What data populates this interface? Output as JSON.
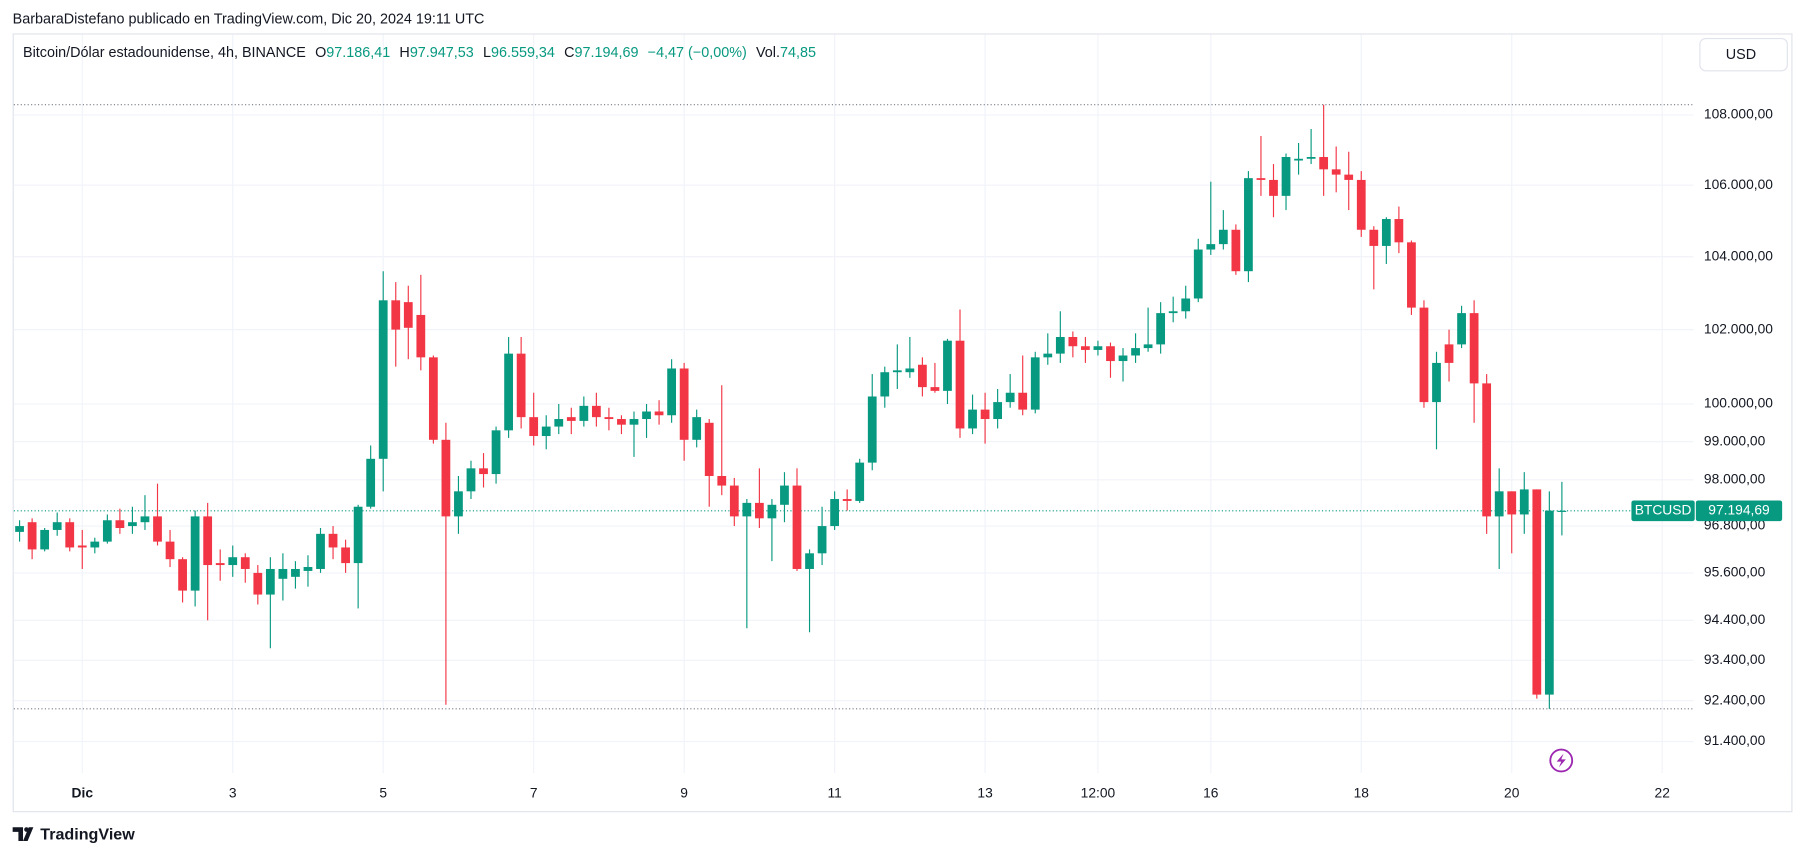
{
  "header": {
    "attribution": "BarbaraDistefano publicado en TradingView.com, Dic 20, 2024 19:11 UTC",
    "logo": "TradingView",
    "currency": "USD"
  },
  "legend": {
    "symbol": "Bitcoin/Dólar estadounidense, 4h, BINANCE",
    "open_label": "O",
    "open": "97.186,41",
    "high_label": "H",
    "high": "97.947,53",
    "low_label": "L",
    "low": "96.559,34",
    "close_label": "C",
    "close": "97.194,69",
    "change": "−4,47 (−0,00%)",
    "volume_label": "Vol.",
    "volume": "74,85"
  },
  "chart_data": {
    "type": "candlestick",
    "log_scale": true,
    "grid": true,
    "up_color": "#089981",
    "down_color": "#f23645",
    "symbol": "BTCUSD",
    "last_price_label": "97.194,69",
    "xlim": [
      -0.46,
      133.5
    ],
    "xticks": [
      {
        "value": 5,
        "label": "Dic"
      },
      {
        "value": 17,
        "label": "3"
      },
      {
        "value": 29,
        "label": "5"
      },
      {
        "value": 41,
        "label": "7"
      },
      {
        "value": 53,
        "label": "9"
      },
      {
        "value": 65,
        "label": "11"
      },
      {
        "value": 77,
        "label": "13"
      },
      {
        "value": 86,
        "label": "12:00"
      },
      {
        "value": 95,
        "label": "16"
      },
      {
        "value": 107,
        "label": "18"
      },
      {
        "value": 119,
        "label": "20"
      },
      {
        "value": 131,
        "label": "22"
      }
    ],
    "ylim": [
      90634,
      110342
    ],
    "yticks": [
      {
        "value": 108000,
        "label": "108.000,00"
      },
      {
        "value": 106000,
        "label": "106.000,00"
      },
      {
        "value": 104000,
        "label": "104.000,00"
      },
      {
        "value": 102000,
        "label": "102.000,00"
      },
      {
        "value": 100000,
        "label": "100.000,00"
      },
      {
        "value": 99000,
        "label": "99.000,00"
      },
      {
        "value": 98000,
        "label": "98.000,00"
      },
      {
        "value": 96800,
        "label": "96.800,00"
      },
      {
        "value": 95600,
        "label": "95.600,00"
      },
      {
        "value": 94400,
        "label": "94.400,00"
      },
      {
        "value": 93400,
        "label": "93.400,00"
      },
      {
        "value": 92400,
        "label": "92.400,00"
      },
      {
        "value": 91400,
        "label": "91.400,00"
      }
    ],
    "open": [
      96650,
      96900,
      96200,
      96700,
      96900,
      96300,
      96250,
      96400,
      96950,
      96800,
      96900,
      97050,
      96400,
      95950,
      95150,
      97050,
      95850,
      95800,
      96000,
      95600,
      95050,
      95450,
      95500,
      95650,
      95700,
      96600,
      96250,
      95850,
      97300,
      98550,
      102800,
      102750,
      102400,
      101250,
      99050,
      97050,
      97700,
      98300,
      98150,
      99300,
      101350,
      99650,
      99150,
      99400,
      99650,
      99550,
      99950,
      99650,
      99600,
      99450,
      99600,
      99800,
      99700,
      100950,
      99050,
      99500,
      98100,
      97850,
      97050,
      97400,
      97000,
      97350,
      97850,
      95700,
      96100,
      96800,
      97500,
      97450,
      98450,
      100200,
      100850,
      100850,
      101050,
      100450,
      100350,
      101700,
      99350,
      99850,
      99600,
      100050,
      100300,
      99850,
      101250,
      101350,
      101800,
      101550,
      101450,
      101550,
      101150,
      101300,
      101500,
      101600,
      102450,
      102500,
      102850,
      104200,
      104350,
      104750,
      103600,
      106200,
      106150,
      105700,
      106700,
      106750,
      106800,
      106450,
      106300,
      106150,
      104750,
      104300,
      105050,
      104400,
      102600,
      100050,
      101600,
      101600,
      102450,
      100550,
      97050,
      97700,
      97100,
      97750,
      92550,
      97186.41
    ],
    "high": [
      96950,
      97000,
      96750,
      97150,
      97000,
      96700,
      96500,
      97100,
      97250,
      97300,
      97600,
      97900,
      96700,
      96000,
      97200,
      97400,
      96200,
      96300,
      96100,
      95800,
      96000,
      96100,
      95900,
      96050,
      96750,
      96800,
      96450,
      97350,
      98900,
      103600,
      103300,
      103200,
      103500,
      101300,
      99500,
      98100,
      98500,
      98700,
      99400,
      101800,
      101800,
      100300,
      99700,
      100000,
      99900,
      100200,
      100300,
      99900,
      99700,
      99800,
      100000,
      100100,
      101200,
      101100,
      99850,
      99600,
      100500,
      98050,
      97500,
      98300,
      97500,
      98200,
      98300,
      96200,
      97300,
      97700,
      97750,
      98550,
      100800,
      101000,
      101600,
      101800,
      101250,
      101100,
      101750,
      102550,
      100250,
      100300,
      100400,
      100800,
      101300,
      101400,
      101900,
      102500,
      101950,
      101800,
      101700,
      101650,
      101500,
      101900,
      102600,
      102750,
      102900,
      103200,
      104500,
      106100,
      105300,
      104900,
      106400,
      107400,
      106600,
      106900,
      107200,
      107600,
      108300,
      107100,
      106950,
      106400,
      104850,
      105100,
      105400,
      104450,
      102800,
      101400,
      102000,
      102650,
      102800,
      100800,
      98300,
      97700,
      98200,
      97750,
      97700,
      97947.53
    ],
    "low": [
      96400,
      95950,
      96150,
      96550,
      96150,
      95700,
      96100,
      96350,
      96600,
      96600,
      96700,
      96300,
      95750,
      94850,
      94750,
      94400,
      95400,
      95500,
      95350,
      94800,
      93700,
      94900,
      95200,
      95250,
      95600,
      95950,
      95600,
      94700,
      97250,
      97700,
      101000,
      101200,
      100900,
      98950,
      92300,
      96600,
      97500,
      97800,
      97900,
      99100,
      99350,
      98900,
      98800,
      99200,
      99200,
      99400,
      99400,
      99300,
      99200,
      98600,
      99100,
      99450,
      99500,
      98500,
      98850,
      97300,
      97600,
      96800,
      94200,
      96750,
      95900,
      96900,
      95650,
      94100,
      95800,
      96700,
      97200,
      97400,
      98250,
      99900,
      100400,
      100700,
      100200,
      100300,
      100000,
      99100,
      99200,
      98950,
      99350,
      99900,
      99700,
      99750,
      101050,
      101100,
      101250,
      101100,
      101300,
      100700,
      100600,
      101100,
      101400,
      101350,
      102200,
      102300,
      102750,
      104050,
      104200,
      103500,
      103300,
      105700,
      105100,
      105300,
      106300,
      106600,
      105700,
      105800,
      105300,
      104550,
      103100,
      103800,
      104100,
      102400,
      99900,
      98800,
      100600,
      101500,
      99500,
      96600,
      95700,
      96100,
      96600,
      92450,
      92200,
      96559.34
    ],
    "close": [
      96800,
      96200,
      96700,
      96900,
      96250,
      96250,
      96400,
      96950,
      96750,
      96900,
      97050,
      96400,
      95950,
      95150,
      97050,
      95800,
      95800,
      96000,
      95700,
      95050,
      95700,
      95700,
      95700,
      95750,
      96600,
      96250,
      95850,
      97300,
      98550,
      102800,
      102000,
      102050,
      101250,
      99050,
      97050,
      97700,
      98300,
      98150,
      99300,
      101350,
      99650,
      99150,
      99400,
      99600,
      99550,
      99950,
      99650,
      99600,
      99450,
      99600,
      99800,
      99700,
      100950,
      99050,
      99650,
      98100,
      97850,
      97050,
      97400,
      97000,
      97350,
      97850,
      95700,
      96100,
      96800,
      97500,
      97450,
      98450,
      100200,
      100850,
      100900,
      100950,
      100450,
      100350,
      101700,
      99350,
      99850,
      99600,
      100050,
      100300,
      99850,
      101250,
      101350,
      101800,
      101550,
      101450,
      101550,
      101150,
      101300,
      101500,
      101600,
      102450,
      102500,
      102850,
      104200,
      104350,
      104750,
      103600,
      106200,
      106150,
      105700,
      106800,
      106750,
      106800,
      106450,
      106300,
      106150,
      104750,
      104300,
      105050,
      104400,
      102600,
      100050,
      101100,
      101100,
      102450,
      100550,
      97050,
      97700,
      97100,
      97750,
      92550,
      97199.16,
      97194.69
    ]
  }
}
